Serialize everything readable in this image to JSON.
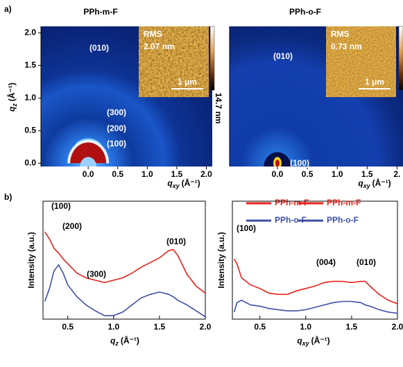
{
  "panel_labels": [
    "a)",
    "b)"
  ],
  "chart_data": [
    {
      "type": "image",
      "title": "PPh-m-F",
      "xlabel": {
        "var": "q",
        "sub": "xy",
        "unit": "(Å⁻¹)"
      },
      "ylabel": {
        "var": "q",
        "sub": "z",
        "unit": "(Å⁻¹)"
      },
      "xlim": [
        -0.8,
        2.1
      ],
      "ylim": [
        -0.05,
        2.1
      ],
      "xticks": [
        {
          "value": 0,
          "label": "0.0"
        },
        0.5,
        {
          "value": 1,
          "label": "1.0"
        },
        1.5,
        {
          "value": 2,
          "label": "2.0"
        }
      ],
      "yticks": [
        {
          "value": 0,
          "label": "0.0"
        },
        0.5,
        {
          "value": 1,
          "label": "1.0"
        },
        1.5,
        {
          "value": 2,
          "label": "2.0"
        }
      ],
      "annotations": [
        "(010)",
        "(300)",
        "(200)",
        "(100)"
      ],
      "inset": {
        "rms_label": "RMS",
        "rms": "2.07 nm",
        "scale": "1 μm"
      },
      "colorbar_label": "14.7 nm"
    },
    {
      "type": "image",
      "title": "PPh-o-F",
      "xlabel": {
        "var": "q",
        "sub": "xy",
        "unit": "(Å⁻¹)"
      },
      "xlim": [
        -0.8,
        2.1
      ],
      "ylim": [
        -0.05,
        2.1
      ],
      "xticks": [
        {
          "value": 0,
          "label": "0.0"
        },
        0.5,
        {
          "value": 1,
          "label": "1.0"
        },
        1.5,
        {
          "value": 2,
          "label": "2."
        }
      ],
      "annotations": [
        "(010)",
        "(100)"
      ],
      "inset": {
        "rms_label": "RMS",
        "rms": "0.73 nm",
        "scale": "1 μm"
      },
      "colorbar_label": "14.7 nm"
    },
    {
      "type": "line",
      "ylabel": "Intensity (a.u.)",
      "xlabel": {
        "var": "q",
        "sub": "z",
        "unit": "(Å⁻¹)"
      },
      "x": [
        0.25,
        0.3,
        0.35,
        0.4,
        0.45,
        0.5,
        0.6,
        0.7,
        0.8,
        0.9,
        1.0,
        1.1,
        1.2,
        1.3,
        1.4,
        1.5,
        1.6,
        1.65,
        1.7,
        1.8,
        1.9,
        2.0
      ],
      "series": [
        {
          "name": "PPh-m-F",
          "color": "#e8211c",
          "values": [
            7.4,
            6.8,
            6.0,
            5.6,
            5.1,
            4.7,
            3.9,
            3.5,
            3.3,
            3.1,
            3.3,
            3.5,
            3.9,
            4.4,
            4.8,
            5.2,
            5.8,
            5.9,
            5.4,
            3.8,
            2.8,
            2.2
          ]
        },
        {
          "name": "PPh-o-F",
          "color": "#3d4ea6",
          "values": [
            1.5,
            2.6,
            4.1,
            4.6,
            3.9,
            2.9,
            1.9,
            1.2,
            0.7,
            0.3,
            0.3,
            0.6,
            1.2,
            1.8,
            2.1,
            2.3,
            2.1,
            1.9,
            1.6,
            1.2,
            0.7,
            0.2
          ]
        }
      ],
      "xlim": [
        0.23,
        2.0
      ],
      "ylim": [
        0,
        10
      ],
      "xticks": [
        0.5,
        {
          "value": 1,
          "label": "1.0"
        },
        1.5,
        {
          "value": 2,
          "label": "2.0"
        }
      ],
      "annotations": [
        "(100)",
        "(200)",
        "(300)",
        "(010)"
      ]
    },
    {
      "type": "line",
      "ylabel": "Intensity (a.u.)",
      "xlabel": {
        "var": "q",
        "sub": "xy",
        "unit": "(Å⁻¹)"
      },
      "x": [
        0.22,
        0.25,
        0.3,
        0.4,
        0.5,
        0.6,
        0.7,
        0.8,
        0.9,
        1.0,
        1.1,
        1.2,
        1.3,
        1.4,
        1.5,
        1.6,
        1.65,
        1.7,
        1.8,
        1.9,
        2.0
      ],
      "series": [
        {
          "name": "PPh-m-F",
          "color": "#e8211c",
          "values": [
            5.1,
            4.7,
            3.5,
            2.9,
            2.6,
            2.2,
            2.1,
            2.1,
            2.4,
            2.6,
            2.8,
            3.1,
            3.2,
            3.2,
            3.1,
            3.2,
            3.2,
            2.8,
            2.1,
            1.6,
            1.3
          ]
        },
        {
          "name": "PPh-o-F",
          "color": "#3d4ea6",
          "values": [
            0.6,
            1.4,
            1.6,
            1.2,
            1.1,
            0.9,
            0.8,
            0.7,
            0.7,
            0.8,
            1.0,
            1.2,
            1.4,
            1.5,
            1.5,
            1.4,
            1.2,
            1.1,
            0.8,
            0.6,
            0.5
          ]
        }
      ],
      "xlim": [
        0.2,
        2.0
      ],
      "ylim": [
        0,
        10
      ],
      "xticks": [
        0.5,
        {
          "value": 1,
          "label": "1.0"
        },
        1.5,
        {
          "value": 2,
          "label": "2.0"
        }
      ],
      "annotations": [
        "(100)",
        "(004)",
        "(010)"
      ]
    }
  ]
}
